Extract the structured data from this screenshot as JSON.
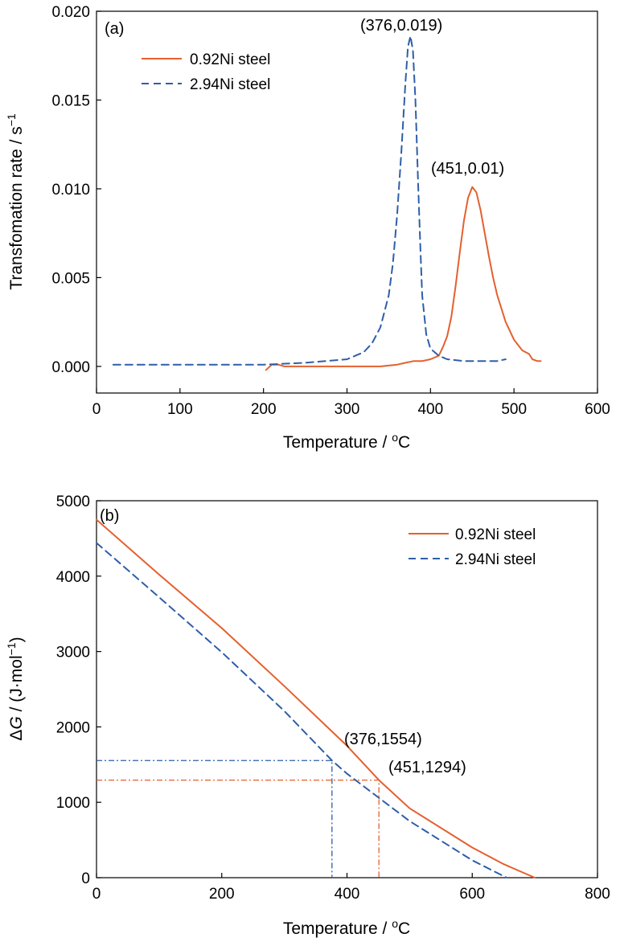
{
  "colors": {
    "orange": "#e4602e",
    "blue": "#2f5ea8"
  },
  "chart_data": [
    {
      "type": "line",
      "panel_label": "(a)",
      "xlabel": "Temperature / °C",
      "ylabel": "Transfomation rate / s⁻¹",
      "xlim": [
        0,
        600
      ],
      "ylim": [
        -0.0015,
        0.02
      ],
      "xticks": [
        0,
        100,
        200,
        300,
        400,
        500,
        600
      ],
      "yticks": [
        0.0,
        0.005,
        0.01,
        0.015,
        0.02
      ],
      "ytick_labels": [
        "0.000",
        "0.005",
        "0.010",
        "0.015",
        "0.020"
      ],
      "legend_position": "top-left",
      "series": [
        {
          "name": "0.92Ni steel",
          "color": "#e4602e",
          "style": "solid",
          "x": [
            203,
            210,
            218,
            225,
            240,
            260,
            280,
            300,
            320,
            340,
            360,
            370,
            380,
            390,
            400,
            410,
            415,
            420,
            425,
            430,
            435,
            440,
            445,
            450,
            455,
            460,
            465,
            470,
            475,
            480,
            490,
            500,
            510,
            518,
            522,
            528,
            532
          ],
          "y": [
            -0.0002,
            0.0001,
            0.0001,
            0.0,
            0.0,
            0.0,
            0.0,
            0.0,
            0.0,
            0.0,
            0.0001,
            0.0002,
            0.0003,
            0.0003,
            0.0004,
            0.0006,
            0.0011,
            0.0017,
            0.0028,
            0.0045,
            0.0064,
            0.0082,
            0.0095,
            0.0101,
            0.0098,
            0.0088,
            0.0075,
            0.0062,
            0.005,
            0.004,
            0.0025,
            0.0015,
            0.0009,
            0.0007,
            0.0004,
            0.0003,
            0.0003
          ]
        },
        {
          "name": "2.94Ni steel",
          "color": "#2f5ea8",
          "style": "dashed",
          "x": [
            20,
            50,
            80,
            100,
            150,
            200,
            250,
            300,
            320,
            330,
            340,
            350,
            355,
            360,
            365,
            370,
            373,
            376,
            379,
            382,
            385,
            388,
            390,
            395,
            400,
            410,
            420,
            440,
            460,
            480,
            490
          ],
          "y": [
            0.0001,
            0.0001,
            0.0001,
            0.0001,
            0.0001,
            0.0001,
            0.0002,
            0.0004,
            0.0008,
            0.0013,
            0.0022,
            0.004,
            0.0058,
            0.0085,
            0.012,
            0.016,
            0.018,
            0.0186,
            0.0178,
            0.015,
            0.0105,
            0.0065,
            0.004,
            0.0018,
            0.001,
            0.0006,
            0.0004,
            0.0003,
            0.0003,
            0.0003,
            0.0004
          ]
        }
      ],
      "annotations": [
        {
          "text": "(376,0.019)",
          "x": 376,
          "y": 0.019,
          "color": "#2f5ea8"
        },
        {
          "text": "(451,0.01)",
          "x": 451,
          "y": 0.0101,
          "color": "#e4602e"
        }
      ]
    },
    {
      "type": "line",
      "panel_label": "(b)",
      "xlabel": "Temperature / °C",
      "ylabel": "ΔG / (J·mol⁻¹)",
      "xlim": [
        0,
        800
      ],
      "ylim": [
        0,
        5000
      ],
      "xticks": [
        0,
        200,
        400,
        600,
        800
      ],
      "yticks": [
        0,
        1000,
        2000,
        3000,
        4000,
        5000
      ],
      "ytick_labels": [
        "0",
        "1000",
        "2000",
        "3000",
        "4000",
        "5000"
      ],
      "legend_position": "top-right",
      "series": [
        {
          "name": "0.92Ni steel",
          "color": "#e4602e",
          "style": "solid",
          "x": [
            0,
            100,
            200,
            300,
            400,
            451,
            500,
            600,
            650,
            700
          ],
          "y": [
            4750,
            4020,
            3310,
            2540,
            1750,
            1294,
            920,
            400,
            180,
            0
          ]
        },
        {
          "name": "2.94Ni steel",
          "color": "#2f5ea8",
          "style": "dashed",
          "x": [
            0,
            100,
            200,
            300,
            376,
            400,
            500,
            600,
            655
          ],
          "y": [
            4440,
            3720,
            2990,
            2210,
            1554,
            1380,
            750,
            230,
            0
          ]
        }
      ],
      "guides": [
        {
          "x": 376,
          "y": 1554,
          "color": "#2f5ea8"
        },
        {
          "x": 451,
          "y": 1294,
          "color": "#e4602e"
        }
      ],
      "annotations": [
        {
          "text": "(376,1554)",
          "x": 376,
          "y": 1554,
          "color": "#2f5ea8"
        },
        {
          "text": "(451,1294)",
          "x": 451,
          "y": 1294,
          "color": "#e4602e"
        }
      ]
    }
  ]
}
